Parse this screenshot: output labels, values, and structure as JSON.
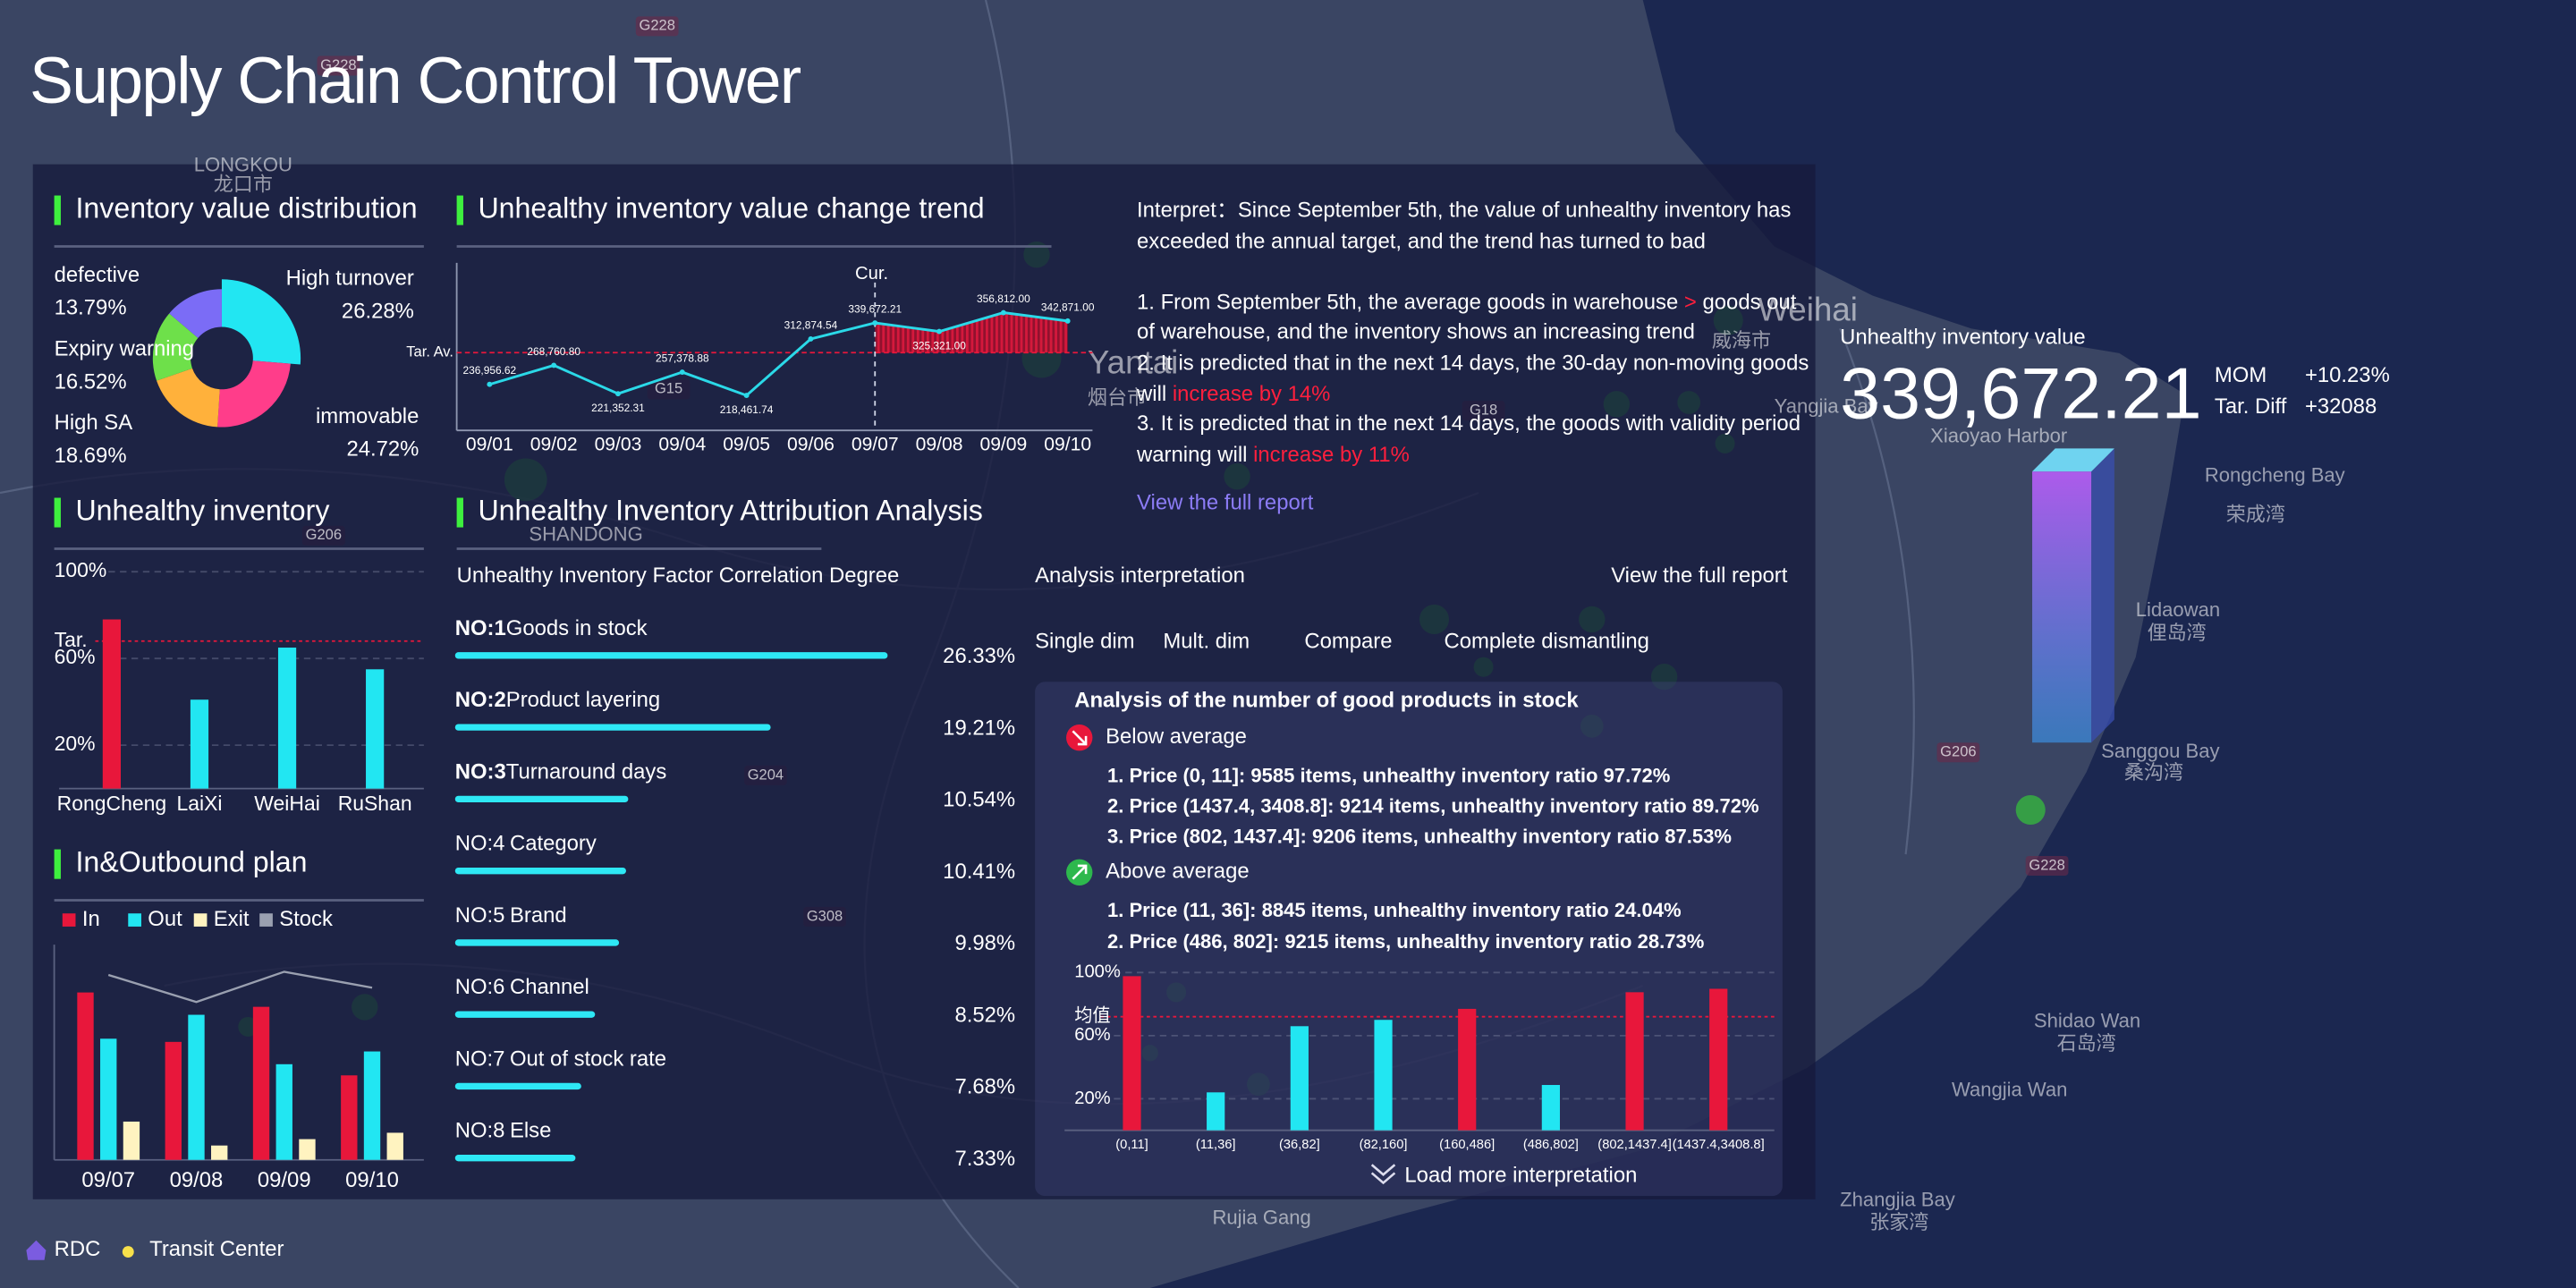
{
  "header": {
    "title": "Supply Chain Control Tower"
  },
  "chart_data": [
    {
      "type": "donut",
      "title": "Inventory value distribution",
      "categories": [
        "High turnover",
        "immovable",
        "High SA",
        "Expiry warning",
        "defective"
      ],
      "values": [
        26.28,
        24.72,
        18.69,
        16.52,
        13.79
      ],
      "value_labels": [
        "26.28%",
        "24.72%",
        "18.69%",
        "16.52%",
        "13.79%"
      ],
      "colors": [
        "#22e6f2",
        "#ff3d8a",
        "#ffb13b",
        "#6ee04a",
        "#7b6cf6"
      ]
    },
    {
      "type": "bar",
      "title": "Unhealthy inventory",
      "categories": [
        "RongCheng",
        "LaiXi",
        "WeiHai",
        "RuShan"
      ],
      "values": [
        78,
        41,
        65,
        55
      ],
      "colors": [
        "#e8173b",
        "#22e6f2",
        "#22e6f2",
        "#22e6f2"
      ],
      "ylim": [
        0,
        100
      ],
      "yticks": [
        {
          "value": 20,
          "label": "20%"
        },
        {
          "value": 60,
          "label": "60%"
        },
        {
          "value": 100,
          "label": "100%"
        }
      ],
      "target": {
        "value": 68,
        "label": "Tar."
      }
    },
    {
      "type": "line",
      "title": "Unhealthy inventory value change trend",
      "categories": [
        "09/01",
        "09/02",
        "09/03",
        "09/04",
        "09/05",
        "09/06",
        "09/07",
        "09/08",
        "09/09",
        "09/10"
      ],
      "values": [
        236956.62,
        268760.8,
        221352.31,
        257378.88,
        218461.74,
        312874.54,
        339672.21,
        325321.0,
        356812.0,
        342871.0
      ],
      "value_labels": [
        "236,956.62",
        "268,760.80",
        "221,352.31",
        "257,378.88",
        "218,461.74",
        "312,874.54",
        "339,672.21",
        "325,321.00",
        "356,812.00",
        "342,871.00"
      ],
      "color": "#2bd9e8",
      "ylim": [
        160000,
        440000
      ],
      "target": {
        "value": 290000,
        "label": "Tar. Av."
      },
      "current": {
        "x": "09/07",
        "label": "Cur."
      }
    },
    {
      "type": "hbar",
      "title": "Unhealthy Inventory Attribution Analysis",
      "subtitle": "Unhealthy Inventory Factor Correlation Degree",
      "ranks": [
        "NO:1",
        "NO:2",
        "NO:3",
        "NO:4",
        "NO:5",
        "NO:6",
        "NO:7",
        "NO:8"
      ],
      "categories": [
        "Goods in stock",
        "Product layering",
        "Turnaround days",
        "Category",
        "Brand",
        "Channel",
        "Out of stock rate",
        "Else"
      ],
      "values": [
        26.33,
        19.21,
        10.54,
        10.41,
        9.98,
        8.52,
        7.68,
        7.33
      ],
      "value_labels": [
        "26.33%",
        "19.21%",
        "10.54%",
        "10.41%",
        "9.98%",
        "8.52%",
        "7.68%",
        "7.33%"
      ],
      "rank_colors": [
        "#2ee8f5",
        "#2ee8f5",
        "#2ee8f5",
        "#ffffff",
        "#ffffff",
        "#ffffff",
        "#ffffff",
        "#ffffff"
      ],
      "color": "#2ee8f5",
      "xlim": [
        0,
        27
      ]
    },
    {
      "type": "grouped_bar",
      "title": "In&Outbound plan",
      "categories": [
        "09/07",
        "09/08",
        "09/09",
        "09/10"
      ],
      "series": [
        {
          "name": "In",
          "color": "#e8173b",
          "values": [
            105,
            74,
            96,
            53
          ]
        },
        {
          "name": "Out",
          "color": "#22e6f2",
          "values": [
            76,
            91,
            60,
            68
          ]
        },
        {
          "name": "Exit",
          "color": "#fff3c0",
          "values": [
            24,
            9,
            13,
            17
          ]
        },
        {
          "name": "Stock",
          "color": "#9aa0b0",
          "type": "line",
          "values": [
            116,
            99,
            118,
            108
          ]
        }
      ],
      "ylim": [
        0,
        135
      ]
    },
    {
      "type": "bar",
      "title": "Analysis of the number of good products in stock",
      "categories": [
        "(0,11]",
        "(11,36]",
        "(36,82]",
        "(82,160]",
        "(160,486]",
        "(486,802]",
        "(802,1437.4]",
        "(1437.4,3408.8]"
      ],
      "values": [
        97.72,
        24.04,
        66,
        70,
        77,
        28.73,
        87.53,
        89.72
      ],
      "colors": [
        "#e8173b",
        "#22e6f2",
        "#22e6f2",
        "#22e6f2",
        "#e8173b",
        "#22e6f2",
        "#e8173b",
        "#e8173b"
      ],
      "ylim": [
        0,
        100
      ],
      "yticks": [
        {
          "value": 20,
          "label": "20%"
        },
        {
          "value": 60,
          "label": "60%"
        },
        {
          "value": 100,
          "label": "100%"
        }
      ],
      "average": {
        "value": 72,
        "label": "均值"
      }
    }
  ],
  "interpretation": {
    "label": "Interpret：",
    "summary": "Since September 5th, the value of unhealthy inventory has exceeded the annual target, and the trend has turned to bad",
    "items": [
      {
        "text": "1. From September 5th, the average goods in warehouse ",
        "highlight": ">",
        "rest": " goods out of warehouse, and the inventory shows an increasing trend"
      },
      {
        "text": "2. It is predicted that in the next 14 days, the 30-day non-moving goods will ",
        "highlight": "increase by 14%"
      },
      {
        "text": "3. It is predicted that in the next 14 days, the goods with validity period warning will ",
        "highlight": "increase by 11%"
      }
    ],
    "link": "View the full report"
  },
  "analysis": {
    "title": "Analysis interpretation",
    "link": "View the full report",
    "tabs": [
      "Single dim",
      "Mult. dim",
      "Compare",
      "Complete dismantling"
    ],
    "below": {
      "label": "Below average",
      "items": [
        "1. Price (0, 11]: 9585 items, unhealthy inventory ratio 97.72%",
        "2. Price (1437.4, 3408.8]: 9214 items, unhealthy inventory ratio  89.72%",
        "3. Price (802, 1437.4]: 9206 items, unhealthy inventory ratio 87.53%"
      ]
    },
    "above": {
      "label": "Above average",
      "items": [
        "1. Price (11, 36]: 8845 items, unhealthy inventory ratio 24.04%",
        "2. Price (486, 802]: 9215 items, unhealthy inventory ratio 28.73%"
      ]
    },
    "more": "Load more interpretation"
  },
  "kpi": {
    "label": "Unhealthy inventory value",
    "value": "339,672.21",
    "items": [
      {
        "label": "MOM",
        "value": "+10.23%"
      },
      {
        "label": "Tar. Diff",
        "value": "+32088"
      }
    ]
  },
  "map_legend": [
    "RDC",
    "Transit Center"
  ],
  "map_labels": [
    "LONGKOU",
    "龙口市",
    "SHANDONG",
    "Yantai",
    "烟台市",
    "Weihai",
    "威海市",
    "Yangjia Bay",
    "Xiaoyao Harbor",
    "Rongcheng Bay",
    "荣成湾",
    "Lidaowan",
    "俚岛湾",
    "Sanggou Bay",
    "桑沟湾",
    "Shidao Wan",
    "石岛湾",
    "Wangjia Wan",
    "Zhangjia Bay",
    "张家湾",
    "Rujia Gang"
  ],
  "road_labels": [
    "G228",
    "G228",
    "G228",
    "G206",
    "G206",
    "G204",
    "G308",
    "G18",
    "G15"
  ]
}
